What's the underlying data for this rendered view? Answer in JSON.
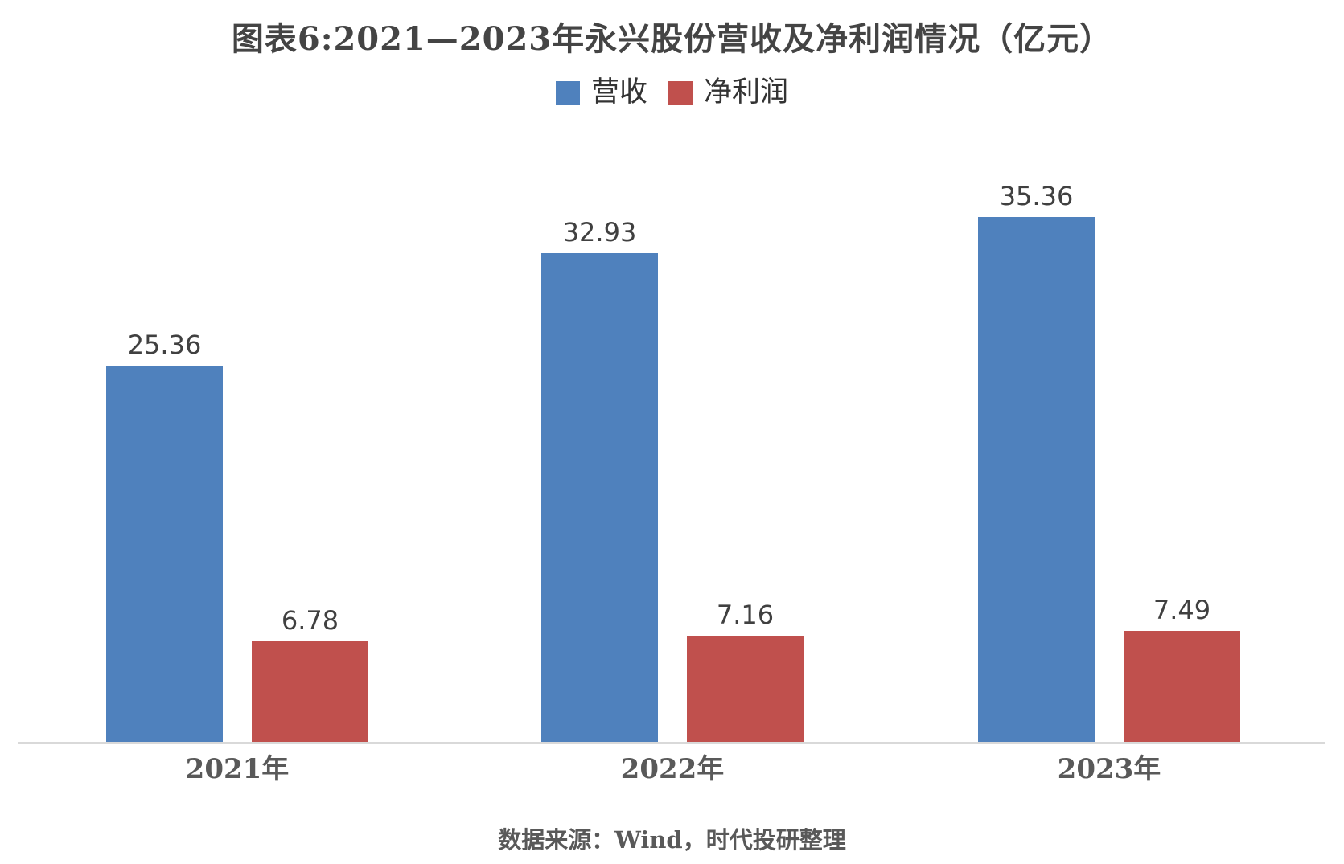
{
  "title": "图表6:2021—2023年永兴股份营收及净利润情况（亿元）",
  "source_note": "数据来源：Wind，时代投研整理",
  "colors": {
    "revenue_bar": "#4F81BD",
    "net_profit_bar": "#C0504D",
    "axis_line": "#D9D9D9",
    "title_text": "#444444",
    "value_label_text": "#404040",
    "axis_label_text": "#595959"
  },
  "chart_data": {
    "type": "bar",
    "title": "图表6:2021—2023年永兴股份营收及净利润情况（亿元）",
    "categories": [
      "2021年",
      "2022年",
      "2023年"
    ],
    "series": [
      {
        "name": "营收",
        "key": "revenue",
        "color": "#4F81BD",
        "values": [
          25.36,
          32.93,
          35.36
        ]
      },
      {
        "name": "净利润",
        "key": "net-profit",
        "color": "#C0504D",
        "values": [
          6.78,
          7.16,
          7.49
        ]
      }
    ],
    "xlabel": "",
    "ylabel": "",
    "ylim": [
      0,
      40
    ],
    "grid": false,
    "y_axis_visible": false,
    "legend_position": "top-center",
    "value_labels": true,
    "unit": "亿元",
    "source": "数据来源：Wind，时代投研整理"
  }
}
